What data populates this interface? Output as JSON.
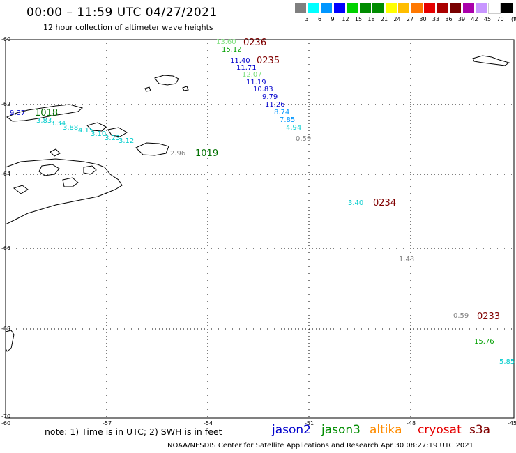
{
  "title": "00:00 – 11:59 UTC 04/27/2021",
  "subtitle": "12 hour collection of altimeter wave heights",
  "scale": {
    "unit": "(ft)",
    "colors": [
      "#7f7f7f",
      "#00ffff",
      "#0096ff",
      "#0000ff",
      "#00d200",
      "#008c00",
      "#008c00",
      "#ffff00",
      "#ffbe00",
      "#ff7800",
      "#e60000",
      "#aa0000",
      "#780000",
      "#aa00aa",
      "#c896ff",
      "#ffffff",
      "#000000"
    ],
    "labels": [
      "3",
      "6",
      "9",
      "12",
      "15",
      "18",
      "21",
      "24",
      "27",
      "30",
      "33",
      "36",
      "39",
      "42",
      "45",
      "70"
    ]
  },
  "axes": {
    "lon_labels": [
      "-60",
      "-57",
      "-54",
      "-51",
      "-48",
      "-45"
    ],
    "lat_labels": [
      "-60",
      "-62",
      "-64",
      "-66",
      "-68",
      "-70"
    ]
  },
  "points": [
    {
      "v": "13.60",
      "c": "#7fe07f"
    },
    {
      "v": "15.12",
      "c": "#00a000"
    },
    {
      "v": "11.40",
      "c": "#0000cc"
    },
    {
      "v": "11.71",
      "c": "#0000cc"
    },
    {
      "v": "12.07",
      "c": "#7fe07f"
    },
    {
      "v": "11.19",
      "c": "#0000cc"
    },
    {
      "v": "10.83",
      "c": "#0000cc"
    },
    {
      "v": "9.79",
      "c": "#0000cc"
    },
    {
      "v": "11.26",
      "c": "#0000cc"
    },
    {
      "v": "8.74",
      "c": "#0096ff"
    },
    {
      "v": "7.85",
      "c": "#0096ff"
    },
    {
      "v": "4.94",
      "c": "#00cccc"
    },
    {
      "v": "0.59",
      "c": "#808080"
    },
    {
      "v": "9.37",
      "c": "#0000cc"
    },
    {
      "v": "3.83",
      "c": "#00cccc"
    },
    {
      "v": "3.34",
      "c": "#00cccc"
    },
    {
      "v": "3.88",
      "c": "#00cccc"
    },
    {
      "v": "4.15",
      "c": "#00cccc"
    },
    {
      "v": "3.10",
      "c": "#00cccc"
    },
    {
      "v": "3.23",
      "c": "#00cccc"
    },
    {
      "v": "3.12",
      "c": "#00cccc"
    },
    {
      "v": "2.96",
      "c": "#808080"
    },
    {
      "v": "3.40",
      "c": "#00cccc"
    },
    {
      "v": "1.43",
      "c": "#808080"
    },
    {
      "v": "0.59",
      "c": "#808080"
    },
    {
      "v": "15.76",
      "c": "#00a000"
    },
    {
      "v": "5.85",
      "c": "#00cccc"
    }
  ],
  "times": [
    {
      "v": "0236",
      "c": "#800000"
    },
    {
      "v": "0235",
      "c": "#800000"
    },
    {
      "v": "1018",
      "c": "#007000"
    },
    {
      "v": "1019",
      "c": "#007000"
    },
    {
      "v": "0234",
      "c": "#800000"
    },
    {
      "v": "0233",
      "c": "#800000"
    }
  ],
  "note": "note: 1) Time is in UTC; 2) SWH is in feet",
  "legend": [
    {
      "name": "jason2",
      "c": "#0000cc"
    },
    {
      "name": "jason3",
      "c": "#008c00"
    },
    {
      "name": "altika",
      "c": "#ff8c00"
    },
    {
      "name": "cryosat",
      "c": "#e60000"
    },
    {
      "name": "s3a",
      "c": "#800000"
    }
  ],
  "footer": "NOAA/NESDIS Center for Satellite Applications and Research    Apr 30 08:27:19 UTC 2021"
}
